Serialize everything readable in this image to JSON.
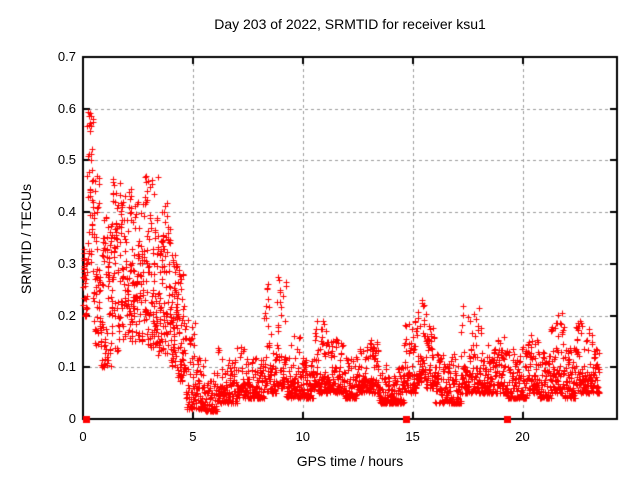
{
  "page": {
    "background_color": "#ffffff",
    "text_color": "#000000"
  },
  "chart_data": {
    "type": "scatter",
    "title": "Day 203 of 2022, SRMTID for receiver ksu1",
    "xlabel": "GPS time / hours",
    "ylabel": "SRMTID / TECUs",
    "xlim": [
      0,
      24.3
    ],
    "ylim": [
      0,
      0.7
    ],
    "xticks": [
      0,
      5,
      10,
      15,
      20
    ],
    "yticks": [
      0,
      0.1,
      0.2,
      0.3,
      0.4,
      0.5,
      0.6,
      0.7
    ],
    "grid": true,
    "grid_style": "dashed-gray",
    "legend": "none",
    "colors": {
      "points": "#ff0000",
      "grid": "#9b9b9b",
      "axis": "#000000"
    },
    "marker": {
      "shape": "plus",
      "size": 7
    },
    "sampling_per_hour": 120,
    "series": [
      {
        "name": "srmtid",
        "style": "plus-points",
        "description": "dense 30-second SRMTID samples; band_profile rows are [t_start_h, t_end_h, y_min, y_max, mode] with mode 0=broad cloud, 1=low baseline, 2=baseline with upward spikes",
        "band_profile": [
          [
            0.0,
            0.18,
            0.2,
            0.36,
            0
          ],
          [
            0.18,
            0.45,
            0.3,
            0.635,
            0
          ],
          [
            0.45,
            0.8,
            0.14,
            0.47,
            0
          ],
          [
            0.8,
            1.3,
            0.1,
            0.4,
            0
          ],
          [
            1.3,
            1.7,
            0.13,
            0.47,
            0
          ],
          [
            1.7,
            2.3,
            0.15,
            0.45,
            0
          ],
          [
            2.3,
            2.8,
            0.15,
            0.42,
            0
          ],
          [
            2.8,
            3.4,
            0.14,
            0.47,
            0
          ],
          [
            3.4,
            4.0,
            0.12,
            0.42,
            0
          ],
          [
            4.0,
            4.3,
            0.1,
            0.35,
            0
          ],
          [
            4.3,
            4.65,
            0.07,
            0.3,
            0
          ],
          [
            4.65,
            5.1,
            0.02,
            0.2,
            1
          ],
          [
            5.1,
            5.55,
            0.02,
            0.12,
            1
          ],
          [
            5.55,
            6.1,
            0.015,
            0.09,
            1
          ],
          [
            6.1,
            6.6,
            0.03,
            0.16,
            2
          ],
          [
            6.6,
            7.0,
            0.03,
            0.12,
            1
          ],
          [
            7.0,
            7.45,
            0.04,
            0.14,
            2
          ],
          [
            7.45,
            8.25,
            0.04,
            0.12,
            1
          ],
          [
            8.25,
            8.55,
            0.05,
            0.29,
            2
          ],
          [
            8.55,
            8.8,
            0.05,
            0.13,
            1
          ],
          [
            8.8,
            9.25,
            0.06,
            0.28,
            2
          ],
          [
            9.25,
            9.9,
            0.04,
            0.16,
            2
          ],
          [
            9.9,
            10.5,
            0.04,
            0.12,
            1
          ],
          [
            10.5,
            11.1,
            0.05,
            0.19,
            2
          ],
          [
            11.1,
            11.9,
            0.05,
            0.16,
            2
          ],
          [
            11.9,
            12.55,
            0.04,
            0.12,
            1
          ],
          [
            12.55,
            13.45,
            0.05,
            0.155,
            2
          ],
          [
            13.45,
            14.6,
            0.03,
            0.105,
            1
          ],
          [
            14.6,
            15.2,
            0.05,
            0.19,
            2
          ],
          [
            15.2,
            15.6,
            0.07,
            0.25,
            2
          ],
          [
            15.6,
            16.0,
            0.06,
            0.18,
            2
          ],
          [
            16.0,
            17.2,
            0.03,
            0.13,
            1
          ],
          [
            17.2,
            18.2,
            0.05,
            0.22,
            2
          ],
          [
            18.2,
            19.3,
            0.05,
            0.16,
            1
          ],
          [
            19.3,
            20.2,
            0.04,
            0.14,
            1
          ],
          [
            20.2,
            20.7,
            0.05,
            0.17,
            2
          ],
          [
            20.7,
            21.3,
            0.04,
            0.13,
            1
          ],
          [
            21.3,
            21.9,
            0.05,
            0.21,
            2
          ],
          [
            21.9,
            22.4,
            0.04,
            0.14,
            1
          ],
          [
            22.4,
            23.2,
            0.05,
            0.19,
            2
          ],
          [
            23.2,
            23.5,
            0.05,
            0.14,
            1
          ]
        ],
        "notable_peaks": [
          [
            0.3,
            0.63
          ],
          [
            1.5,
            0.47
          ],
          [
            2.0,
            0.45
          ],
          [
            2.9,
            0.47
          ],
          [
            8.35,
            0.29
          ],
          [
            8.9,
            0.28
          ],
          [
            10.8,
            0.19
          ],
          [
            15.4,
            0.25
          ],
          [
            17.9,
            0.22
          ],
          [
            21.6,
            0.21
          ],
          [
            22.9,
            0.19
          ]
        ]
      },
      {
        "name": "zero-flag-squares",
        "style": "filled-square",
        "points_x": [
          0.15,
          14.7,
          19.3
        ],
        "y": 0
      }
    ]
  }
}
